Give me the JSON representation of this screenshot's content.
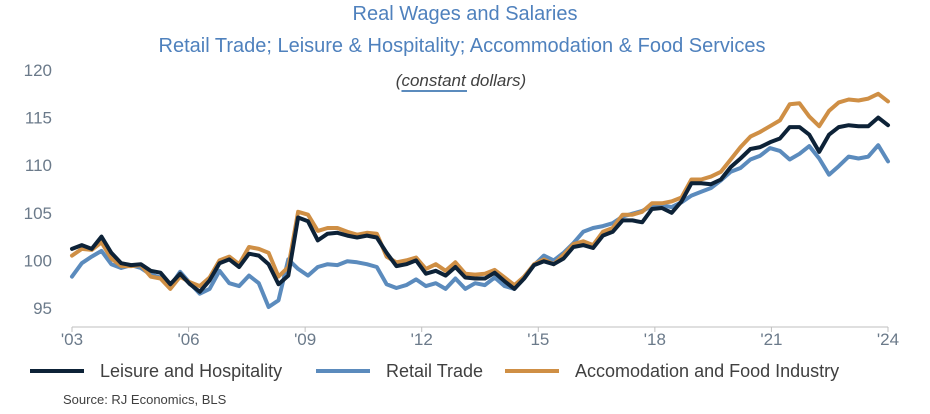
{
  "chart_data": {
    "type": "line",
    "title": "Real Wages and Salaries",
    "subtitle": "Retail Trade; Leisure & Hospitality; Accommodation & Food Services",
    "note_prefix": "(",
    "note_emphasis": "constant",
    "note_suffix": " dollars)",
    "source": "Source: RJ Economics, BLS",
    "x_start": 2003,
    "x_end": 2024,
    "points_per_year": 4,
    "xticks": [
      {
        "value": 2003,
        "label": "'03"
      },
      {
        "value": 2006,
        "label": "'06"
      },
      {
        "value": 2009,
        "label": "'09"
      },
      {
        "value": 2012,
        "label": "'12"
      },
      {
        "value": 2015,
        "label": "'15"
      },
      {
        "value": 2018,
        "label": "'18"
      },
      {
        "value": 2021,
        "label": "'21"
      },
      {
        "value": 2024,
        "label": "'24"
      }
    ],
    "ylim": [
      93,
      120
    ],
    "yticks": [
      95,
      100,
      105,
      110,
      115,
      120
    ],
    "grid": false,
    "legend_position": "bottom",
    "colors": {
      "leisure": "#0d2237",
      "retail": "#5b8bbd",
      "accommodation": "#cf8f45",
      "title": "#4f81bd",
      "axis": "#bfbfbf"
    },
    "series": [
      {
        "name": "Leisure and Hospitality",
        "key": "leisure",
        "values": [
          101.2,
          101.6,
          101.2,
          102.5,
          100.8,
          99.7,
          99.5,
          99.6,
          98.9,
          98.7,
          97.5,
          98.6,
          97.5,
          96.7,
          97.9,
          99.7,
          100.1,
          99.3,
          100.7,
          100.5,
          99.6,
          97.5,
          98.4,
          104.5,
          104.1,
          102.1,
          102.8,
          102.9,
          102.6,
          102.4,
          102.6,
          102.4,
          100.8,
          99.4,
          99.6,
          100.0,
          98.6,
          98.9,
          98.4,
          99.3,
          98.2,
          98.1,
          98.1,
          98.7,
          97.8,
          97.0,
          98.1,
          99.5,
          99.9,
          99.6,
          100.2,
          101.4,
          101.6,
          101.3,
          102.6,
          103.0,
          104.2,
          104.2,
          104.0,
          105.4,
          105.5,
          105.0,
          106.2,
          108.1,
          108.1,
          108.0,
          108.5,
          109.8,
          110.7,
          111.7,
          111.9,
          112.4,
          112.8,
          114.0,
          114.0,
          113.2,
          111.4,
          113.2,
          114.0,
          114.2,
          114.1,
          114.1,
          115.0,
          114.2
        ]
      },
      {
        "name": "Retail Trade",
        "key": "retail",
        "values": [
          98.3,
          99.7,
          100.4,
          101.0,
          99.6,
          99.2,
          99.5,
          99.2,
          98.5,
          98.2,
          97.3,
          98.8,
          97.6,
          96.5,
          97.0,
          98.9,
          97.6,
          97.3,
          98.4,
          97.6,
          95.1,
          95.8,
          100.1,
          99.1,
          98.4,
          99.3,
          99.6,
          99.5,
          99.9,
          99.8,
          99.6,
          99.3,
          97.5,
          97.1,
          97.4,
          98.0,
          97.3,
          97.6,
          97.0,
          98.1,
          97.0,
          97.6,
          97.4,
          98.2,
          97.3,
          97.0,
          98.3,
          99.5,
          100.5,
          100.0,
          100.8,
          101.8,
          103.0,
          103.4,
          103.6,
          103.9,
          104.6,
          104.9,
          105.2,
          105.7,
          105.8,
          105.6,
          106.1,
          106.8,
          107.2,
          107.6,
          108.4,
          109.3,
          109.7,
          110.6,
          111.0,
          111.8,
          111.5,
          110.6,
          111.2,
          112.0,
          110.7,
          109.0,
          109.9,
          110.9,
          110.7,
          110.9,
          112.1,
          110.4
        ]
      },
      {
        "name": "Accomodation and Food Industry",
        "key": "accommodation",
        "values": [
          100.5,
          101.2,
          101.1,
          101.9,
          100.2,
          99.4,
          99.4,
          99.5,
          98.3,
          98.1,
          97.0,
          98.3,
          97.7,
          97.3,
          98.2,
          100.0,
          100.4,
          99.6,
          101.4,
          101.2,
          100.8,
          98.3,
          99.3,
          105.1,
          104.8,
          103.1,
          103.4,
          103.4,
          103.0,
          102.7,
          102.9,
          102.8,
          100.4,
          99.8,
          100.0,
          100.3,
          99.1,
          99.6,
          98.9,
          99.8,
          98.6,
          98.5,
          98.6,
          99.0,
          98.2,
          97.4,
          98.3,
          99.6,
          100.1,
          99.6,
          100.6,
          101.7,
          102.0,
          101.6,
          103.0,
          103.4,
          104.8,
          104.8,
          105.1,
          106.0,
          106.0,
          106.2,
          106.6,
          108.5,
          108.5,
          108.8,
          109.3,
          110.6,
          111.9,
          113.0,
          113.5,
          114.1,
          114.7,
          116.4,
          116.5,
          115.1,
          114.1,
          115.7,
          116.6,
          116.9,
          116.8,
          117.0,
          117.5,
          116.7
        ]
      }
    ]
  }
}
